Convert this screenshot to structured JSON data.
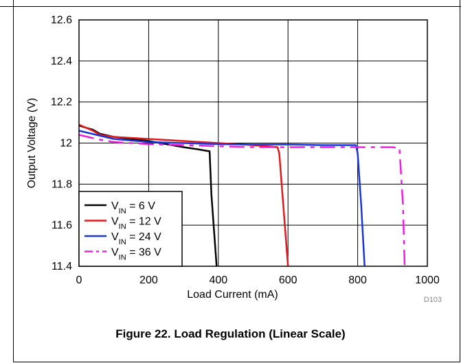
{
  "chart_data": {
    "type": "line",
    "title": "",
    "xlabel": "Load Current (mA)",
    "ylabel": "Output Voltage (V)",
    "xlim": [
      0,
      1000
    ],
    "ylim": [
      11.4,
      12.6
    ],
    "xticks": [
      0,
      200,
      400,
      600,
      800,
      1000
    ],
    "yticks": [
      11.4,
      11.6,
      11.8,
      12,
      12.2,
      12.4,
      12.6
    ],
    "ytick_labels": [
      "11.4",
      "11.6",
      "11.8",
      "12",
      "12.2",
      "12.4",
      "12.6"
    ],
    "grid": true,
    "legend_position": "bottom-left",
    "series": [
      {
        "name_sub": "IN",
        "name_value": "= 6 V",
        "color": "#000000",
        "dash": "solid",
        "x": [
          0,
          20,
          40,
          60,
          100,
          150,
          200,
          250,
          300,
          340,
          375,
          380,
          395
        ],
        "y": [
          12.085,
          12.075,
          12.065,
          12.045,
          12.03,
          12.02,
          12.01,
          11.995,
          11.98,
          11.97,
          11.96,
          11.75,
          11.4
        ]
      },
      {
        "name_sub": "IN",
        "name_value": "= 12 V",
        "color": "#e0191c",
        "dash": "solid",
        "x": [
          0,
          20,
          40,
          60,
          80,
          100,
          150,
          200,
          300,
          400,
          500,
          570,
          575,
          600
        ],
        "y": [
          12.09,
          12.075,
          12.06,
          12.04,
          12.035,
          12.03,
          12.025,
          12.02,
          12.01,
          12.0,
          11.99,
          11.98,
          11.95,
          11.4
        ]
      },
      {
        "name_sub": "IN",
        "name_value": "= 24 V",
        "color": "#1a35d6",
        "dash": "solid",
        "x": [
          0,
          50,
          100,
          200,
          300,
          400,
          500,
          600,
          700,
          795,
          800,
          810,
          820
        ],
        "y": [
          12.06,
          12.04,
          12.02,
          12.005,
          12.0,
          11.995,
          11.993,
          11.993,
          11.99,
          11.99,
          11.95,
          11.7,
          11.4
        ]
      },
      {
        "name_sub": "IN",
        "name_value": "= 36 V",
        "color": "#f01ee0",
        "dash": "dashdot",
        "x": [
          0,
          50,
          100,
          200,
          300,
          400,
          500,
          600,
          700,
          800,
          900,
          920,
          930,
          935
        ],
        "y": [
          12.04,
          12.02,
          12.005,
          11.995,
          11.99,
          11.985,
          11.98,
          11.98,
          11.98,
          11.98,
          11.98,
          11.975,
          11.7,
          11.4
        ]
      }
    ],
    "legend_prefix": "V"
  },
  "figure": {
    "id": "D103",
    "caption": "Figure 22. Load Regulation (Linear Scale)"
  }
}
